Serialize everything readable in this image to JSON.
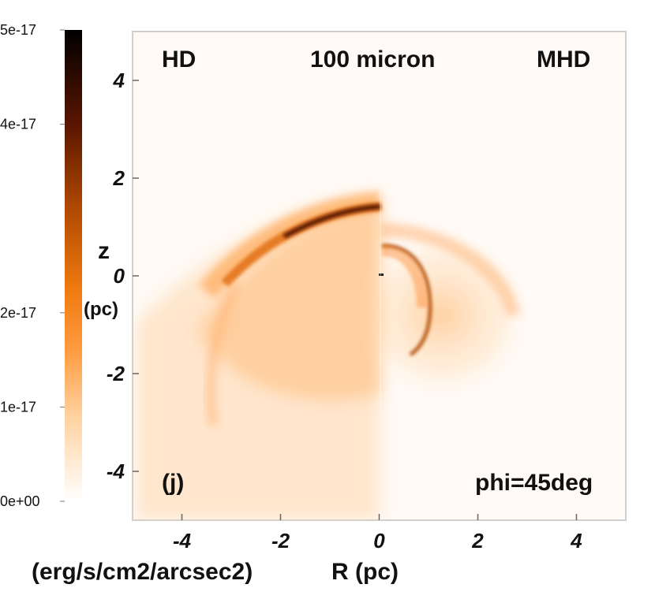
{
  "chart_data": {
    "type": "heatmap",
    "panel_label": "(j)",
    "wavelength_label": "100 micron",
    "left_label": "HD",
    "right_label": "MHD",
    "angle_label": "phi=45deg",
    "xlabel": "R (pc)",
    "ylabel_top": "z",
    "ylabel_bottom": "(pc)",
    "xlim": [
      -5.0,
      5.0
    ],
    "ylim": [
      -5.0,
      5.0
    ],
    "xticks": [
      "-4",
      "-2",
      "0",
      "2",
      "4"
    ],
    "yticks": [
      "4",
      "2",
      "0",
      "-2",
      "-4"
    ],
    "colorbar": {
      "label": "(erg/s/cm2/arcsec2)",
      "range": [
        0,
        5e-17
      ],
      "ticks": [
        "5e-17",
        "4e-17",
        "2e-17",
        "1e-17",
        "0e+00"
      ],
      "colors": [
        "#ffffff",
        "#ffd2a0",
        "#ff9436",
        "#f07a10",
        "#b04a00",
        "#5a1500",
        "#000000"
      ]
    }
  }
}
